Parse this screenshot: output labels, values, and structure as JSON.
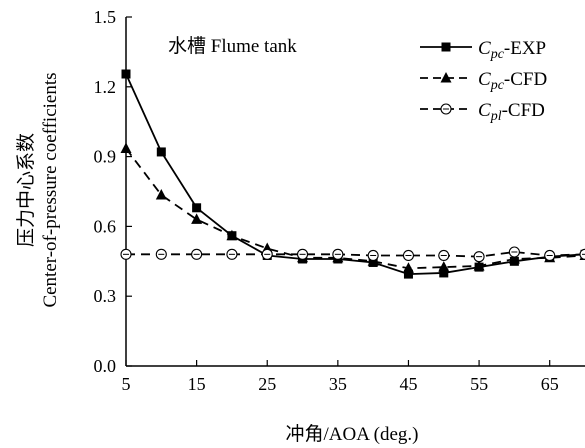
{
  "chart_data": {
    "type": "line",
    "annotation": "水槽 Flume tank",
    "xlabel": "冲角/AOA (deg.)",
    "ylabel_lines": [
      "压力中心系数",
      "Center-of-pressure coefficients"
    ],
    "xlim": [
      5,
      70
    ],
    "ylim": [
      0,
      1.5
    ],
    "xticks": [
      5,
      15,
      25,
      35,
      45,
      55,
      65
    ],
    "xtick_labels": [
      "5",
      "15",
      "25",
      "35",
      "45",
      "55",
      "65"
    ],
    "yticks": [
      0,
      0.3,
      0.6,
      0.9,
      1.2,
      1.5
    ],
    "ytick_labels": [
      "0.0",
      "0.3",
      "0.6",
      "0.9",
      "1.2",
      "1.5"
    ],
    "grid": false,
    "legend_position": "top-right",
    "x": [
      5,
      10,
      15,
      20,
      25,
      30,
      35,
      40,
      45,
      50,
      55,
      60,
      65,
      70
    ],
    "series": [
      {
        "legend": {
          "sym": "C",
          "sub": "pc",
          "suffix": "-EXP"
        },
        "line": "solid",
        "marker": "square",
        "values": [
          1.255,
          0.92,
          0.68,
          0.56,
          0.475,
          0.46,
          0.46,
          0.445,
          0.395,
          0.4,
          0.425,
          0.45,
          0.47,
          0.48
        ]
      },
      {
        "legend": {
          "sym": "C",
          "sub": "pc",
          "suffix": "-CFD"
        },
        "line": "dashed",
        "marker": "triangle",
        "values": [
          0.935,
          0.735,
          0.63,
          0.56,
          0.505,
          0.465,
          0.465,
          0.45,
          0.42,
          0.425,
          0.43,
          0.46,
          0.465,
          0.475
        ]
      },
      {
        "legend": {
          "sym": "C",
          "sub": "pl",
          "suffix": "-CFD"
        },
        "line": "dashed",
        "marker": "open-circle",
        "values": [
          0.48,
          0.48,
          0.48,
          0.48,
          0.48,
          0.48,
          0.48,
          0.475,
          0.475,
          0.475,
          0.47,
          0.49,
          0.475,
          0.48
        ]
      }
    ]
  }
}
